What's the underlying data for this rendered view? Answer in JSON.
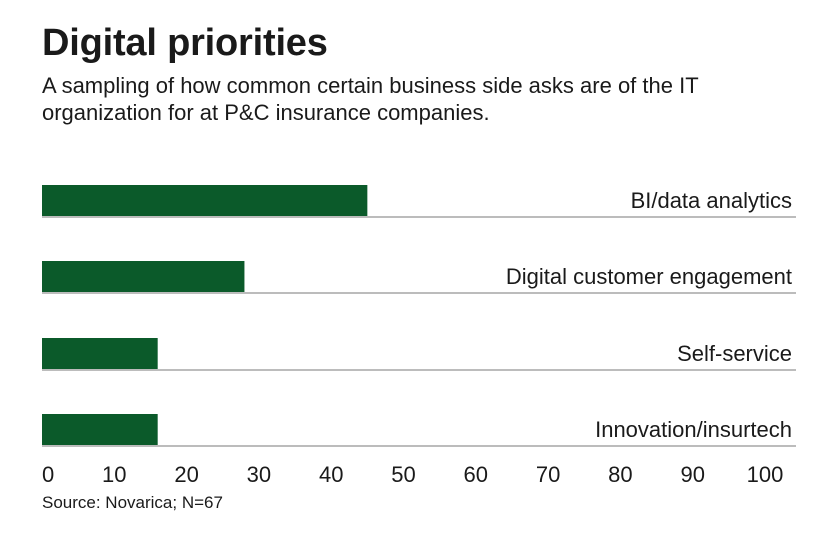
{
  "header": {
    "title": "Digital priorities",
    "subtitle": "A sampling of how common certain business side asks are of the IT organization for at P&C insurance companies."
  },
  "footer": {
    "source": "Source: Novarica; N=67"
  },
  "colors": {
    "bar": "#0b5a2a",
    "rule": "#7a7a7a",
    "text": "#1a1a1a"
  },
  "chart_data": {
    "type": "bar",
    "orientation": "horizontal",
    "title": "Digital priorities",
    "categories": [
      "BI/data analytics",
      "Digital customer engagement",
      "Self-service",
      "Innovation/insurtech"
    ],
    "values": [
      45,
      28,
      16,
      16
    ],
    "xlim": [
      0,
      100
    ],
    "xticks": [
      0,
      10,
      20,
      30,
      40,
      50,
      60,
      70,
      80,
      90,
      100
    ],
    "xlabel": "",
    "ylabel": "",
    "grid": false,
    "legend": "none"
  }
}
